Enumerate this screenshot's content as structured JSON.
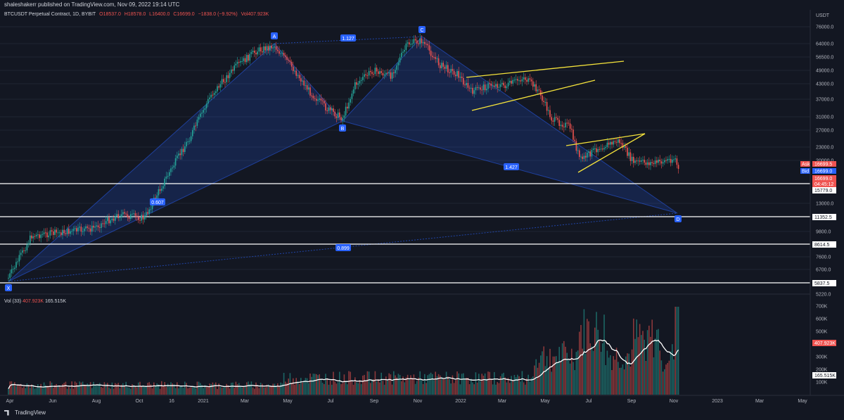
{
  "header": {
    "publisher": "shaleshakerr published on TradingView.com, Nov 09, 2022 19:14 UTC"
  },
  "legend": {
    "symbol": "BTCUSDT Perpetual Contract, 1D, BYBIT",
    "open": "O18537.0",
    "high": "H18578.0",
    "low": "L16400.0",
    "close": "C16699.0",
    "change": "−1838.0 (−9.92%)",
    "volume": "Vol407.923K"
  },
  "price_axis": {
    "currency": "USDT",
    "ticks": [
      "76000.0",
      "64000.0",
      "56500.0",
      "49000.0",
      "43000.0",
      "37000.0",
      "31000.0",
      "27000.0",
      "23000.0",
      "20000.0",
      "13000.0",
      "9800.0",
      "7600.0",
      "6700.0",
      "5220.0"
    ]
  },
  "price_labels": {
    "ask": "Ask",
    "ask_value": "16699.5",
    "bid": "Bid",
    "bid_value": "16699.0",
    "last": "16699.0",
    "countdown": "04:45:12",
    "level_1": "15779.0",
    "level_2": "11352.5",
    "level_3": "8614.5",
    "level_4": "5837.5"
  },
  "pattern": {
    "points": [
      "X",
      "A",
      "B",
      "C",
      "D"
    ],
    "ratios": {
      "ab": "0.607",
      "ac": "1.127",
      "bd": "1.427",
      "xd": "0.899"
    }
  },
  "volume_axis": {
    "ticks": [
      "700K",
      "600K",
      "500K",
      "300K",
      "200K",
      "100K"
    ],
    "current": "407.923K",
    "ma": "165.515K"
  },
  "volume_legend": {
    "label": "Vol (33)",
    "value": "407.923K",
    "ma": "165.515K"
  },
  "time_axis": {
    "labels": [
      "Apr",
      "Jun",
      "Aug",
      "Oct",
      "16",
      "2021",
      "Mar",
      "May",
      "Jul",
      "Sep",
      "Nov",
      "2022",
      "Mar",
      "May",
      "Jul",
      "Sep",
      "Nov",
      "2023",
      "Mar",
      "May"
    ]
  },
  "brand": {
    "name": "TradingView"
  },
  "colors": {
    "bg": "#131722",
    "up": "#26a69a",
    "down": "#ef5350",
    "pattern": "#2962ff",
    "trend": "#f5e33b"
  }
}
